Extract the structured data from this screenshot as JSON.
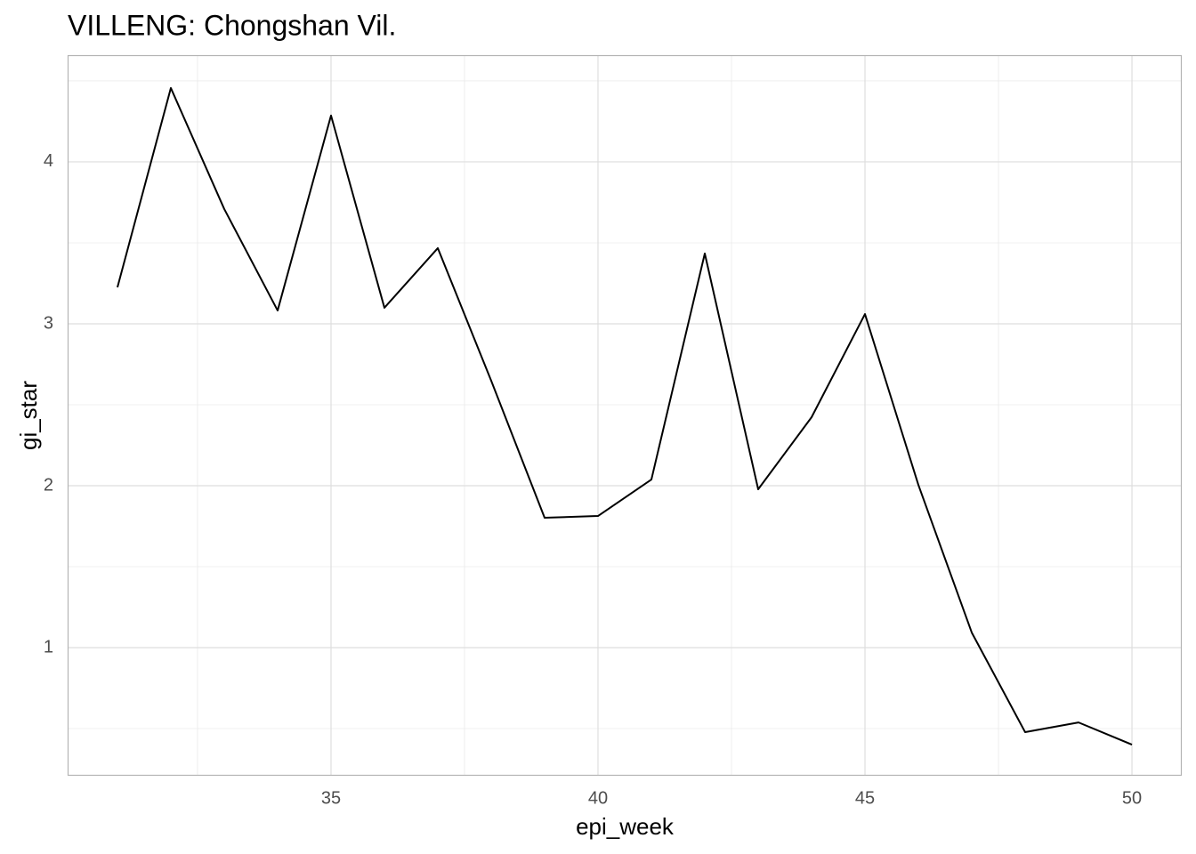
{
  "chart_data": {
    "type": "line",
    "title": "VILLENG: Chongshan Vil.",
    "x_label": "epi_week",
    "y_label": "gi_star",
    "x": [
      31,
      32,
      33,
      34,
      35,
      36,
      37,
      38,
      39,
      40,
      41,
      42,
      43,
      44,
      45,
      46,
      47,
      48,
      49,
      50
    ],
    "series": [
      {
        "color": "#000000",
        "values": [
          3.225,
          4.456,
          3.709,
          3.082,
          4.286,
          3.099,
          3.467,
          2.648,
          1.802,
          1.813,
          2.038,
          3.434,
          1.978,
          2.423,
          3.06,
          2.005,
          1.093,
          0.478,
          0.538,
          0.401
        ]
      }
    ],
    "xlim": [
      30.067,
      50.933
    ],
    "ylim": [
      0.209,
      4.659
    ],
    "xticks": [
      35,
      40,
      45,
      50
    ],
    "yticks": [
      1,
      2,
      3,
      4
    ],
    "minor_xticks": [
      32.5,
      37.5,
      42.5,
      47.5
    ],
    "minor_yticks": [
      0.5,
      1.5,
      2.5,
      3.5,
      4.5
    ],
    "grid": true
  }
}
